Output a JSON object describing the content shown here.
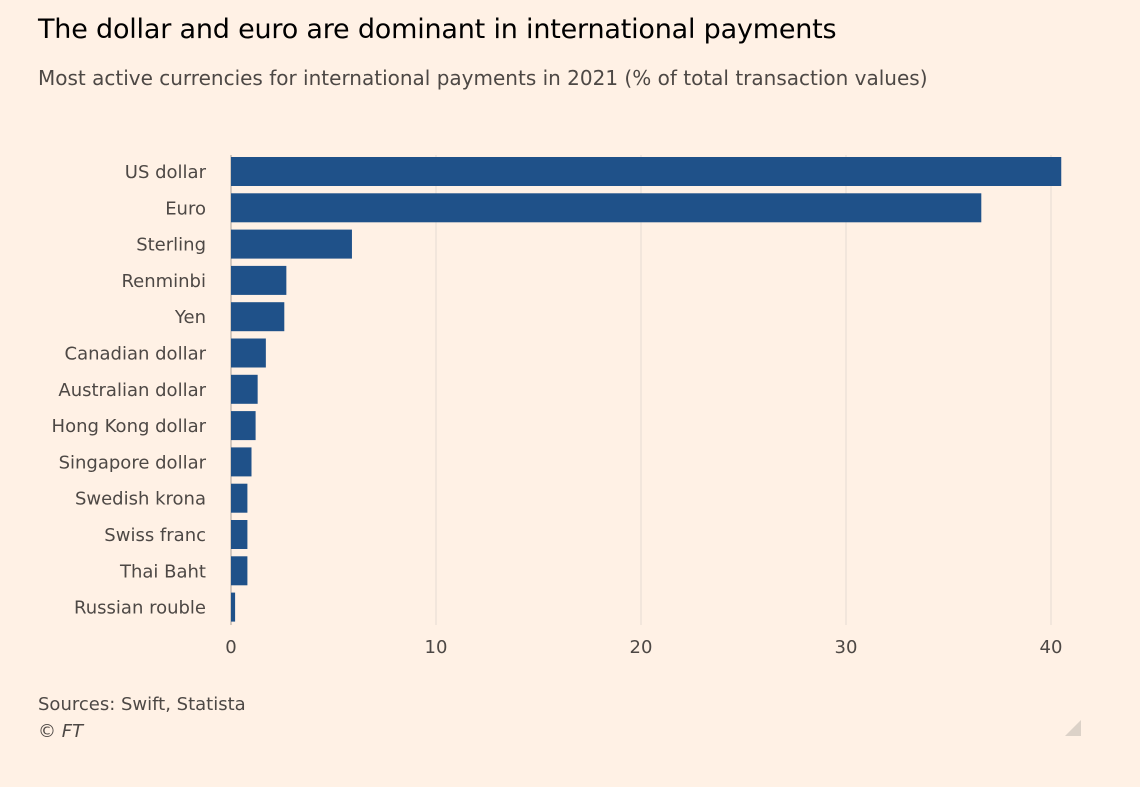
{
  "header": {
    "title": "The dollar and euro are dominant in international payments",
    "subtitle": "Most active currencies for international payments in 2021 (% of total transaction values)"
  },
  "footer": {
    "source": "Sources: Swift, Statista",
    "copyright": "© FT"
  },
  "colors": {
    "background": "#FFF1E5",
    "bar": "#1F5189",
    "grid": "#E6DCD3",
    "text": "#4d4845"
  },
  "chart_data": {
    "type": "bar",
    "orientation": "horizontal",
    "categories": [
      "US dollar",
      "Euro",
      "Sterling",
      "Renminbi",
      "Yen",
      "Canadian dollar",
      "Australian dollar",
      "Hong Kong dollar",
      "Singapore dollar",
      "Swedish krona",
      "Swiss franc",
      "Thai Baht",
      "Russian rouble"
    ],
    "values": [
      40.5,
      36.6,
      5.9,
      2.7,
      2.6,
      1.7,
      1.3,
      1.2,
      1.0,
      0.8,
      0.8,
      0.8,
      0.2
    ],
    "xlim": [
      0,
      40
    ],
    "xticks": [
      0,
      10,
      20,
      30,
      40
    ],
    "grid": true
  }
}
